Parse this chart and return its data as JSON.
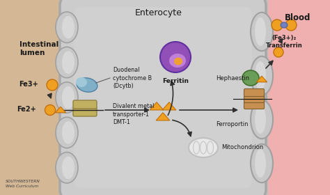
{
  "bg_lumen": "#d4b896",
  "bg_cell": "#c0c0c0",
  "bg_blood": "#f0b0b0",
  "title_enterocyte": "Enterocyte",
  "title_lumen": "Intestinal\nlumen",
  "title_blood": "Blood",
  "label_dcytb": "Duodenal\ncytochrome B\n(Dcytb)",
  "label_dmt": "Divalent metal\ntransporter-1\nDMT-1",
  "label_fe3": "Fe3+",
  "label_fe2": "Fe2+",
  "label_mito": "Mitochondrion",
  "label_ferritin": "Ferritin",
  "label_ferroportin": "Ferroportin",
  "label_hephaestin": "Hephaestin",
  "label_transferrin": "(Fe3+)₂\nTransferrin",
  "label_southwestern": "SOUTHWESTERN\nWeb Curriculum",
  "color_fe_orange": "#f0a020",
  "color_fe_orange_dark": "#c07010",
  "color_dcytb_blue": "#80b0c8",
  "color_dmt_yellow": "#c0b060",
  "color_ferritin_purple": "#9050b8",
  "color_ferritin_light": "#c080d8",
  "color_mito_gray": "#e0e0e0",
  "color_hephaestin_green": "#6a9e58",
  "color_ferroportin_brown": "#c89050",
  "color_arrow": "#303030",
  "text_color": "#1a1a1a",
  "membrane_outer": "#b8b8b8",
  "membrane_inner": "#d0d0d0",
  "cell_inner": "#cccccc"
}
